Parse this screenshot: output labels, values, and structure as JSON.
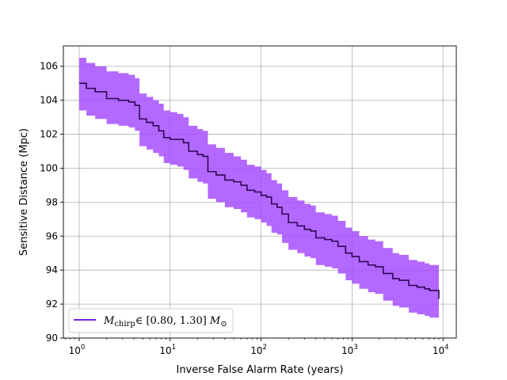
{
  "chart_data": {
    "type": "line",
    "xscale": "log",
    "xlabel": "Inverse False Alarm Rate (years)",
    "ylabel": "Sensitive Distance (Mpc)",
    "xlim": [
      0.67,
      14000
    ],
    "ylim": [
      90,
      107.2
    ],
    "x_ticks": [
      1,
      10,
      100,
      1000,
      10000
    ],
    "x_tick_labels": [
      {
        "base": "10",
        "exp": "0"
      },
      {
        "base": "10",
        "exp": "1"
      },
      {
        "base": "10",
        "exp": "2"
      },
      {
        "base": "10",
        "exp": "3"
      },
      {
        "base": "10",
        "exp": "4"
      }
    ],
    "y_ticks": [
      90,
      92,
      94,
      96,
      98,
      100,
      102,
      104,
      106
    ],
    "y_tick_labels": [
      "90",
      "92",
      "94",
      "96",
      "98",
      "100",
      "102",
      "104",
      "106"
    ],
    "grid": true,
    "legend_position": "lower-left",
    "colors": {
      "line": "#2e0854",
      "band": "#a64dff",
      "legend_line": "#7a1fe0",
      "grid": "#b0b0b0"
    },
    "series": [
      {
        "name": "M_chirp ∈ [0.80, 1.30] M_⊙",
        "legend_parts": {
          "main": "M",
          "sub": "chirp",
          "interval": "∈ [0.80, 1.30] ",
          "unit": "M",
          "unit_sub": "⊙"
        },
        "x": [
          1.0,
          1.2,
          1.5,
          2.0,
          2.7,
          3.5,
          4.1,
          4.6,
          5.5,
          6.5,
          7.5,
          8.5,
          10,
          12,
          14,
          16,
          20,
          23,
          26,
          32,
          40,
          50,
          60,
          70,
          85,
          100,
          115,
          130,
          150,
          170,
          200,
          250,
          300,
          350,
          400,
          500,
          600,
          700,
          850,
          1000,
          1200,
          1500,
          1800,
          2200,
          2800,
          3300,
          4200,
          5200,
          6300,
          7100,
          9000
        ],
        "y": [
          105.0,
          104.7,
          104.5,
          104.1,
          104.0,
          103.9,
          103.7,
          102.9,
          102.7,
          102.5,
          102.2,
          101.8,
          101.7,
          101.7,
          101.5,
          101.0,
          100.8,
          100.7,
          99.8,
          99.6,
          99.3,
          99.2,
          99.0,
          98.7,
          98.6,
          98.4,
          98.3,
          97.9,
          97.7,
          97.3,
          96.8,
          96.6,
          96.4,
          96.3,
          95.9,
          95.8,
          95.7,
          95.4,
          95.0,
          94.8,
          94.5,
          94.3,
          94.2,
          93.8,
          93.5,
          93.4,
          93.1,
          93.0,
          92.9,
          92.8,
          92.3
        ],
        "lower": [
          103.4,
          103.1,
          102.9,
          102.6,
          102.5,
          102.4,
          102.2,
          101.3,
          101.1,
          100.9,
          100.7,
          100.3,
          100.2,
          100.1,
          99.9,
          99.4,
          99.2,
          99.1,
          98.2,
          98.0,
          97.7,
          97.6,
          97.4,
          97.1,
          97.0,
          96.8,
          96.6,
          96.2,
          96.1,
          95.6,
          95.2,
          95.0,
          94.8,
          94.7,
          94.3,
          94.2,
          94.1,
          93.8,
          93.4,
          93.2,
          92.9,
          92.7,
          92.6,
          92.2,
          91.9,
          91.8,
          91.5,
          91.4,
          91.3,
          91.2,
          90.7
        ],
        "upper": [
          106.5,
          106.2,
          106.0,
          105.7,
          105.6,
          105.5,
          105.3,
          104.4,
          104.2,
          104.0,
          103.8,
          103.4,
          103.3,
          103.2,
          103.0,
          102.5,
          102.3,
          102.2,
          101.4,
          101.2,
          100.9,
          100.7,
          100.5,
          100.2,
          100.1,
          99.9,
          99.7,
          99.3,
          99.1,
          98.7,
          98.3,
          98.1,
          97.9,
          97.8,
          97.4,
          97.3,
          97.2,
          96.9,
          96.5,
          96.3,
          96.0,
          95.8,
          95.7,
          95.3,
          95.0,
          94.9,
          94.6,
          94.5,
          94.4,
          94.3,
          93.7
        ]
      }
    ]
  }
}
